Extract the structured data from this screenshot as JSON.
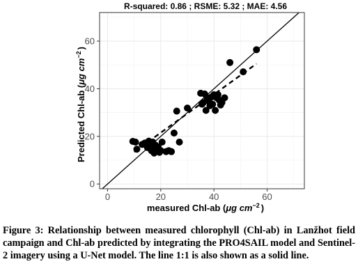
{
  "chart_data": {
    "type": "scatter",
    "title": "R-squared: 0.86 ; RSME: 5.32 ; MAE: 4.56",
    "xlabel_main": "measured Chl-ab (",
    "xlabel_unit": "μg cm",
    "xlabel_exp": "−2",
    "xlabel_end": ")",
    "ylabel_main": "Predicted Chl-ab (",
    "ylabel_unit": "μg cm",
    "ylabel_exp": "−2",
    "ylabel_end": ")",
    "xlim": [
      -3,
      74
    ],
    "ylim": [
      -2,
      72
    ],
    "x_ticks": [
      0,
      20,
      40,
      60
    ],
    "y_ticks": [
      0,
      20,
      40,
      60
    ],
    "grid": true,
    "reference_line": {
      "label": "1:1",
      "style": "solid"
    },
    "fit_line": {
      "style": "dashed",
      "x": [
        10,
        56
      ],
      "y": [
        13.5,
        50.5
      ]
    },
    "points": [
      {
        "x": 9.5,
        "y": 17.9
      },
      {
        "x": 10.5,
        "y": 17.6
      },
      {
        "x": 11,
        "y": 14.6
      },
      {
        "x": 13,
        "y": 16.6
      },
      {
        "x": 14,
        "y": 17.2
      },
      {
        "x": 15,
        "y": 15.3
      },
      {
        "x": 15.5,
        "y": 18.0
      },
      {
        "x": 16,
        "y": 16.0
      },
      {
        "x": 16.5,
        "y": 14.0
      },
      {
        "x": 17,
        "y": 17.6
      },
      {
        "x": 17.5,
        "y": 13.0
      },
      {
        "x": 18,
        "y": 16.3
      },
      {
        "x": 18.5,
        "y": 14.3
      },
      {
        "x": 19,
        "y": 15.6
      },
      {
        "x": 19.5,
        "y": 13.3
      },
      {
        "x": 20,
        "y": 14.0
      },
      {
        "x": 20.5,
        "y": 17.6
      },
      {
        "x": 22,
        "y": 13.6
      },
      {
        "x": 23,
        "y": 14.0
      },
      {
        "x": 24,
        "y": 13.6
      },
      {
        "x": 25,
        "y": 21.4
      },
      {
        "x": 26,
        "y": 30.6
      },
      {
        "x": 27,
        "y": 17.6
      },
      {
        "x": 30,
        "y": 31.9
      },
      {
        "x": 35,
        "y": 38.1
      },
      {
        "x": 35.5,
        "y": 33.5
      },
      {
        "x": 36,
        "y": 34.2
      },
      {
        "x": 36.5,
        "y": 37.8
      },
      {
        "x": 37,
        "y": 30.9
      },
      {
        "x": 37.5,
        "y": 36.2
      },
      {
        "x": 38,
        "y": 34.9
      },
      {
        "x": 38.5,
        "y": 32.9
      },
      {
        "x": 39,
        "y": 36.5
      },
      {
        "x": 39.5,
        "y": 33.5
      },
      {
        "x": 40,
        "y": 37.5
      },
      {
        "x": 40.5,
        "y": 30.9
      },
      {
        "x": 41,
        "y": 36.2
      },
      {
        "x": 41.5,
        "y": 37.5
      },
      {
        "x": 42,
        "y": 35.2
      },
      {
        "x": 42.5,
        "y": 33.2
      },
      {
        "x": 43,
        "y": 34.2
      },
      {
        "x": 44,
        "y": 36.2
      },
      {
        "x": 46,
        "y": 51.0
      },
      {
        "x": 51,
        "y": 47.1
      },
      {
        "x": 56,
        "y": 56.4
      }
    ]
  },
  "caption": "Figure 3: Relationship between measured chlorophyll (Chl-ab) in Lanžhot field campaign and Chl-ab predicted by integrating the PRO4SAIL model and Sentinel-2 imagery using a U-Net model. The line 1:1 is also shown as a solid line."
}
